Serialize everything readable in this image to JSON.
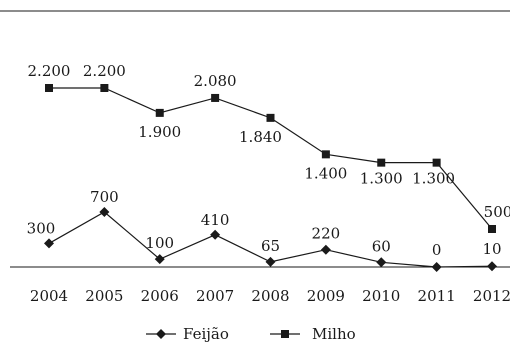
{
  "chart_data": {
    "type": "line",
    "categories": [
      "2004",
      "2005",
      "2006",
      "2007",
      "2008",
      "2009",
      "2010",
      "2011",
      "2012"
    ],
    "series": [
      {
        "name": "Feijão",
        "marker": "diamond",
        "values": [
          300,
          700,
          100,
          410,
          65,
          220,
          60,
          0,
          10
        ],
        "labels": [
          "300",
          "700",
          "100",
          "410",
          "65",
          "220",
          "60",
          "0",
          "10"
        ]
      },
      {
        "name": "Milho",
        "marker": "square",
        "values": [
          2200,
          2200,
          1900,
          2080,
          1840,
          1400,
          1300,
          1300,
          500
        ],
        "labels": [
          "2.200",
          "2.200",
          "1.900",
          "2.080",
          "1.840",
          "1.400",
          "1.300",
          "1.300",
          "500"
        ]
      }
    ],
    "legend_position": "bottom-center",
    "grid": false,
    "ylim": [
      0,
      2200
    ],
    "color": "#1a1a1a"
  }
}
